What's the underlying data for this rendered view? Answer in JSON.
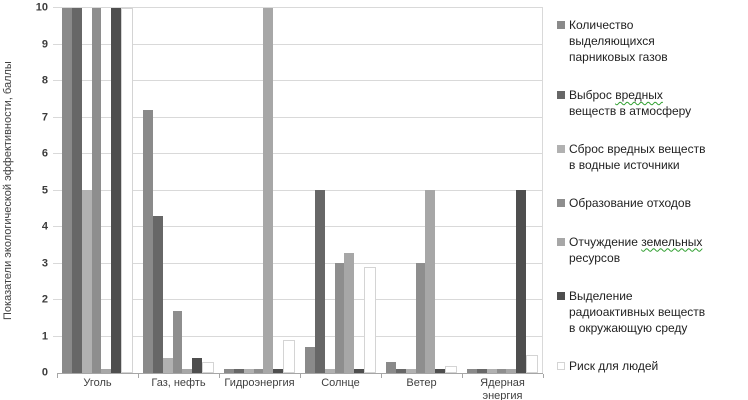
{
  "chart_data": {
    "type": "bar",
    "title": "",
    "xlabel": "",
    "ylabel": "Показатели экологической эффективности, баллы",
    "ylim": [
      0,
      10
    ],
    "yticks": [
      0,
      1,
      2,
      3,
      4,
      5,
      6,
      7,
      8,
      9,
      10
    ],
    "grid": true,
    "legend_position": "right",
    "categories": [
      "Уголь",
      "Газ, нефть",
      "Гидроэнергия",
      "Солнце",
      "Ветер",
      "Ядерная энергия"
    ],
    "series": [
      {
        "name": "Количество выделяющихся парниковых газов",
        "color": "#8a8a8a",
        "values": [
          10,
          7.2,
          0.1,
          0.7,
          0.3,
          0.1
        ]
      },
      {
        "name": "Выброс вредных веществ в атмосферу",
        "color": "#676767",
        "values": [
          10,
          4.3,
          0.1,
          5,
          0.1,
          0.1
        ]
      },
      {
        "name": "Сброс вредных веществ в водные источники",
        "color": "#b1b1b1",
        "values": [
          5,
          0.4,
          0.1,
          0.1,
          0.1,
          0.1
        ]
      },
      {
        "name": "Образование отходов",
        "color": "#8e8e8e",
        "values": [
          10,
          1.7,
          0.1,
          3,
          3,
          0.1
        ]
      },
      {
        "name": "Отчуждение земельных ресурсов",
        "color": "#a7a7a7",
        "values": [
          0.1,
          0.1,
          10,
          3.3,
          5,
          0.1
        ]
      },
      {
        "name": "Выделение радиоактивных веществ в окружающую среду",
        "color": "#4e4e4e",
        "values": [
          10,
          0.4,
          0.1,
          0.1,
          0.1,
          5
        ]
      },
      {
        "name": "Риск для людей",
        "color": "#ffffff",
        "border_color": "#d4d4d4",
        "values": [
          10,
          0.3,
          0.9,
          2.9,
          0.2,
          0.5
        ]
      }
    ],
    "legend_items": [
      {
        "lines": [
          "Количество",
          "выделяющихся",
          "парниковых газов"
        ]
      },
      {
        "lines": [
          "Выброс вредных",
          "веществ в атмосферу"
        ],
        "wavy_word": "вредных"
      },
      {
        "lines": [
          "Сброс вредных веществ",
          "в водные источники"
        ]
      },
      {
        "lines": [
          "Образование отходов"
        ]
      },
      {
        "lines": [
          "Отчуждение земельных",
          "ресурсов"
        ],
        "wavy_word": "земельных"
      },
      {
        "lines": [
          "Выделение",
          "радиоактивных веществ",
          "в окружающую среду"
        ]
      },
      {
        "lines": [
          "Риск для людей"
        ]
      }
    ],
    "colors": {
      "gridline": "#d9d9d9",
      "axis_line": "#a6a6a6",
      "axis_text": "#3f3f3f",
      "legend_text": "#1f1f1f",
      "spellcheck_underline": "#2e9e2e",
      "background": "#ffffff"
    }
  }
}
